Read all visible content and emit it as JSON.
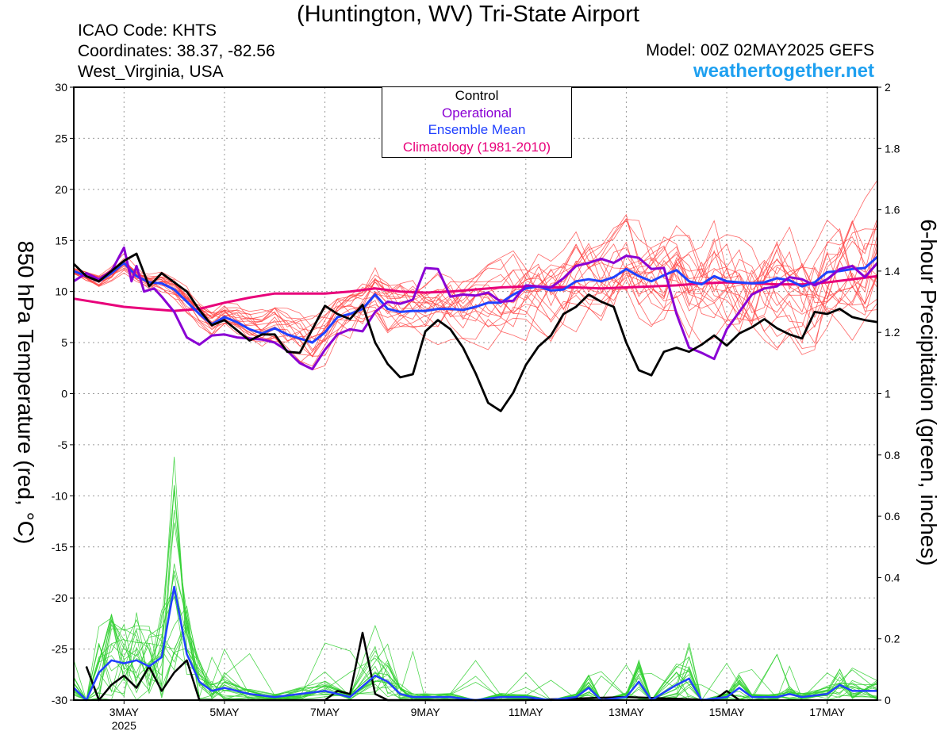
{
  "header": {
    "title": "(Huntington, WV) Tri-State Airport",
    "icao": "ICAO Code: KHTS",
    "coords": "Coordinates: 38.37, -82.56",
    "region": "West_Virginia, USA",
    "model": "Model: 00Z 02MAY2025 GEFS",
    "site": "weathertogether.net"
  },
  "chart_data": {
    "type": "line",
    "title": "(Huntington, WV) Tri-State Airport",
    "ylabel": "850 hPa Temperature (red, °C)",
    "y2label": "6-hour Precipitation (green, inches)",
    "ylim": [
      -30,
      30
    ],
    "y2lim": [
      0,
      2
    ],
    "yticks": [
      "30",
      "25",
      "20",
      "15",
      "10",
      "5",
      "0",
      "-5",
      "-10",
      "-15",
      "-20",
      "-25",
      "-30"
    ],
    "y2ticks": [
      "2",
      "1.8",
      "1.6",
      "1.4",
      "1.2",
      "1",
      "0.8",
      "0.6",
      "0.4",
      "0.2",
      "0"
    ],
    "xlim_days": [
      2.0,
      18.0
    ],
    "xticks": [
      {
        "label": "3MAY",
        "sub": "2025",
        "day": 3
      },
      {
        "label": "5MAY",
        "sub": "",
        "day": 5
      },
      {
        "label": "7MAY",
        "sub": "",
        "day": 7
      },
      {
        "label": "9MAY",
        "sub": "",
        "day": 9
      },
      {
        "label": "11MAY",
        "sub": "",
        "day": 11
      },
      {
        "label": "13MAY",
        "sub": "",
        "day": 13
      },
      {
        "label": "15MAY",
        "sub": "",
        "day": 15
      },
      {
        "label": "17MAY",
        "sub": "",
        "day": 17
      }
    ],
    "legend": [
      "Control",
      "Operational",
      "Ensemble Mean",
      "Climatology (1981-2010)"
    ],
    "legend_position": "top-center",
    "grid": true,
    "colors": {
      "control": "#000000",
      "operational": "#8a00d4",
      "ensemble_mean": "#2040ff",
      "climatology": "#e8007a",
      "members_temp": "#ff4040",
      "members_precip": "#30d030"
    },
    "temperature": {
      "control": {
        "x": [
          2.0,
          2.25,
          2.5,
          2.75,
          3.0,
          3.25,
          3.5,
          3.75,
          4.0,
          4.25,
          4.5,
          4.75,
          5.0,
          5.25,
          5.5,
          5.75,
          6.0,
          6.25,
          6.5,
          6.75,
          7.0,
          7.25,
          7.5,
          7.75,
          8.0,
          8.25,
          8.5,
          8.75,
          9.0,
          9.25,
          9.5,
          9.75,
          10.0,
          10.25,
          10.5,
          10.75,
          11.0,
          11.25,
          11.5,
          11.75,
          12.0,
          12.25,
          12.5,
          12.75,
          13.0,
          13.25,
          13.5,
          13.75,
          14.0,
          14.25,
          14.5,
          14.75,
          15.0,
          15.25,
          15.5,
          15.75,
          16.0,
          16.25,
          16.5,
          16.75,
          17.0,
          17.25,
          17.5,
          17.75,
          18.0
        ],
        "y": [
          12.7,
          11.5,
          11.0,
          12.0,
          13.0,
          13.7,
          10.5,
          11.8,
          10.9,
          10.0,
          8.2,
          6.7,
          7.2,
          6.2,
          5.2,
          5.8,
          5.8,
          4.1,
          4.0,
          6.3,
          8.6,
          7.8,
          7.3,
          8.7,
          5.0,
          2.9,
          1.6,
          1.9,
          6.1,
          7.2,
          6.3,
          4.5,
          2.0,
          -0.9,
          -1.7,
          0.1,
          2.8,
          4.6,
          5.7,
          7.8,
          8.5,
          9.7,
          9.0,
          8.5,
          5.0,
          2.3,
          1.8,
          4.1,
          4.5,
          4.1,
          4.8,
          5.7,
          4.7,
          5.9,
          6.5,
          7.3,
          6.4,
          5.8,
          5.4,
          8.0,
          7.8,
          8.3,
          7.5,
          7.2,
          7.0
        ]
      },
      "operational": {
        "x": [
          2.0,
          2.25,
          2.5,
          2.75,
          3.0,
          3.15,
          3.25,
          3.4,
          3.6,
          3.75,
          4.0,
          4.25,
          4.5,
          4.75,
          5.0,
          5.25,
          5.5,
          5.75,
          6.0,
          6.25,
          6.5,
          6.75,
          7.0,
          7.25,
          7.5,
          7.75,
          8.0,
          8.25,
          8.5,
          8.75,
          9.0,
          9.25,
          9.5,
          9.75,
          10.0,
          10.25,
          10.5,
          10.75,
          11.0,
          11.25,
          11.5,
          11.75,
          12.0,
          12.25,
          12.5,
          12.75,
          13.0,
          13.25,
          13.5,
          13.75,
          14.0,
          14.25,
          14.5,
          14.75,
          15.0,
          15.25,
          15.5,
          15.75,
          16.0,
          16.25,
          16.5,
          16.75,
          17.0,
          17.25,
          17.5,
          17.75,
          18.0
        ],
        "y": [
          11.0,
          11.8,
          11.2,
          12.0,
          14.3,
          11.0,
          12.5,
          10.0,
          10.3,
          9.5,
          8.0,
          5.5,
          4.8,
          5.7,
          5.8,
          5.5,
          5.4,
          5.3,
          5.0,
          4.2,
          3.0,
          2.4,
          4.3,
          5.8,
          6.3,
          6.1,
          8.0,
          9.0,
          8.8,
          9.2,
          12.3,
          12.2,
          9.5,
          9.7,
          9.6,
          9.9,
          9.0,
          9.1,
          10.6,
          10.5,
          10.4,
          11.3,
          12.5,
          12.8,
          13.2,
          12.8,
          13.5,
          13.3,
          12.2,
          12.3,
          7.8,
          4.5,
          4.0,
          3.4,
          6.3,
          8.0,
          9.7,
          10.3,
          10.5,
          11.4,
          11.2,
          10.6,
          11.2,
          12.2,
          12.5,
          11.4,
          12.8
        ]
      },
      "ensemble_mean": {
        "x": [
          2.0,
          2.25,
          2.5,
          2.75,
          3.0,
          3.25,
          3.5,
          3.75,
          4.0,
          4.25,
          4.5,
          4.75,
          5.0,
          5.25,
          5.5,
          5.75,
          6.0,
          6.25,
          6.5,
          6.75,
          7.0,
          7.25,
          7.5,
          7.75,
          8.0,
          8.25,
          8.5,
          8.75,
          9.0,
          9.25,
          9.5,
          9.75,
          10.0,
          10.25,
          10.5,
          10.75,
          11.0,
          11.25,
          11.5,
          11.75,
          12.0,
          12.25,
          12.5,
          12.75,
          13.0,
          13.25,
          13.5,
          13.75,
          14.0,
          14.25,
          14.5,
          14.75,
          15.0,
          15.25,
          15.5,
          15.75,
          16.0,
          16.25,
          16.5,
          16.75,
          17.0,
          17.25,
          17.5,
          17.75,
          18.0
        ],
        "y": [
          12.0,
          11.5,
          11.0,
          11.8,
          12.8,
          11.5,
          10.9,
          10.8,
          10.2,
          9.0,
          7.8,
          6.8,
          7.5,
          7.0,
          6.3,
          5.9,
          6.4,
          5.8,
          5.4,
          5.0,
          6.0,
          7.5,
          7.8,
          8.3,
          9.7,
          8.3,
          8.0,
          8.1,
          8.1,
          8.3,
          8.3,
          8.2,
          8.5,
          8.9,
          8.9,
          9.7,
          10.3,
          10.5,
          10.1,
          10.2,
          11.0,
          11.2,
          11.0,
          11.4,
          12.2,
          11.5,
          11.0,
          11.6,
          12.1,
          11.0,
          10.7,
          11.5,
          11.0,
          10.9,
          10.8,
          10.9,
          11.3,
          11.1,
          10.5,
          10.9,
          11.9,
          12.0,
          12.2,
          12.3,
          13.4
        ]
      },
      "climatology": {
        "x": [
          2.0,
          2.5,
          3.0,
          3.5,
          4.0,
          4.5,
          5.0,
          5.5,
          6.0,
          6.5,
          7.0,
          7.5,
          8.0,
          8.5,
          9.0,
          9.5,
          10.0,
          10.5,
          11.0,
          11.5,
          12.0,
          12.5,
          13.0,
          13.5,
          14.0,
          14.5,
          15.0,
          15.5,
          16.0,
          16.5,
          17.0,
          17.5,
          18.0
        ],
        "y": [
          9.3,
          8.9,
          8.5,
          8.3,
          8.1,
          8.3,
          8.9,
          9.4,
          9.8,
          9.8,
          9.8,
          10.0,
          10.3,
          10.0,
          9.9,
          10.0,
          10.2,
          10.4,
          10.5,
          10.4,
          10.4,
          10.3,
          10.4,
          10.5,
          10.6,
          10.8,
          10.9,
          10.8,
          10.7,
          10.7,
          10.9,
          11.2,
          11.5
        ]
      }
    },
    "precipitation": {
      "control": {
        "x": [
          2.25,
          2.5,
          2.75,
          3.0,
          3.25,
          3.5,
          3.75,
          4.0,
          4.25,
          4.5,
          4.75,
          7.0,
          7.25,
          7.5,
          7.75,
          8.0,
          8.25,
          8.5,
          8.75,
          9.0,
          9.5,
          10.0,
          11.0,
          13.0,
          14.75,
          15.0,
          15.25
        ],
        "y": [
          0.11,
          0.0,
          0.05,
          0.08,
          0.04,
          0.11,
          0.03,
          0.09,
          0.13,
          0.0,
          0.0,
          0.0,
          0.03,
          0.02,
          0.22,
          0.02,
          0.0,
          0.0,
          0.0,
          0.0,
          0.0,
          0.0,
          0.0,
          0.01,
          0.0,
          0.03,
          0.0
        ]
      },
      "ensemble_mean": {
        "x": [
          2.0,
          2.25,
          2.5,
          2.75,
          3.0,
          3.25,
          3.5,
          3.75,
          4.0,
          4.25,
          4.5,
          4.75,
          5.0,
          5.5,
          6.0,
          6.5,
          7.0,
          7.5,
          8.0,
          8.25,
          8.5,
          8.75,
          9.0,
          9.5,
          10.0,
          10.5,
          11.0,
          11.5,
          12.0,
          12.25,
          12.5,
          13.0,
          13.25,
          13.5,
          14.0,
          14.25,
          14.5,
          15.0,
          15.25,
          15.5,
          16.0,
          16.25,
          16.5,
          17.0,
          17.25,
          17.5,
          18.0
        ],
        "y": [
          0.04,
          0.0,
          0.09,
          0.13,
          0.12,
          0.13,
          0.11,
          0.14,
          0.37,
          0.15,
          0.06,
          0.03,
          0.04,
          0.02,
          0.01,
          0.02,
          0.03,
          0.01,
          0.08,
          0.06,
          0.02,
          0.01,
          0.01,
          0.01,
          0.0,
          0.01,
          0.01,
          0.0,
          0.01,
          0.04,
          0.0,
          0.01,
          0.06,
          0.0,
          0.05,
          0.07,
          0.0,
          0.01,
          0.04,
          0.01,
          0.01,
          0.02,
          0.01,
          0.02,
          0.05,
          0.03,
          0.03
        ]
      }
    }
  }
}
